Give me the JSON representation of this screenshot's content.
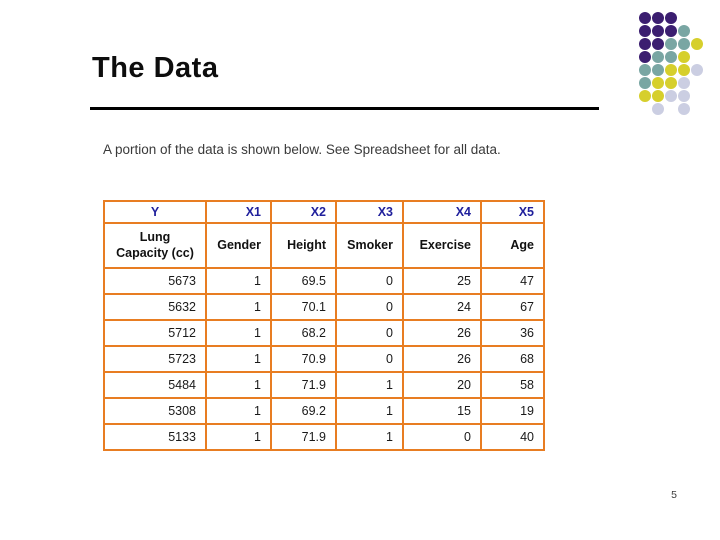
{
  "slide": {
    "title": "The Data",
    "subtitle": "A portion of the data is shown below. See Spreadsheet for all data.",
    "page_number": "5"
  },
  "table": {
    "border_color": "#E87D22",
    "header_text_color": "#1F1F9C",
    "variable_headers": [
      "Y",
      "X1",
      "X2",
      "X3",
      "X4",
      "X5"
    ],
    "name_headers": [
      "Lung\nCapacity (cc)",
      "Gender",
      "Height",
      "Smoker",
      "Exercise",
      "Age"
    ],
    "rows": [
      [
        "5673",
        "1",
        "69.5",
        "0",
        "25",
        "47"
      ],
      [
        "5632",
        "1",
        "70.1",
        "0",
        "24",
        "67"
      ],
      [
        "5712",
        "1",
        "68.2",
        "0",
        "26",
        "36"
      ],
      [
        "5723",
        "1",
        "70.9",
        "0",
        "26",
        "68"
      ],
      [
        "5484",
        "1",
        "71.9",
        "1",
        "20",
        "58"
      ],
      [
        "5308",
        "1",
        "69.2",
        "1",
        "15",
        "19"
      ],
      [
        "5133",
        "1",
        "71.9",
        "1",
        "0",
        "40"
      ]
    ]
  },
  "decoration": {
    "dot_colors": {
      "P": "#3B1E70",
      "T": "#79A6A3",
      "Y": "#D6CF2C",
      "L": "#CBCEE2"
    },
    "dot_grid": [
      "PPP..",
      "PPPT.",
      "PPTTY",
      "PTTY.",
      "TTYYL",
      "TYYL.",
      "YYLL.",
      ".L.L."
    ]
  }
}
